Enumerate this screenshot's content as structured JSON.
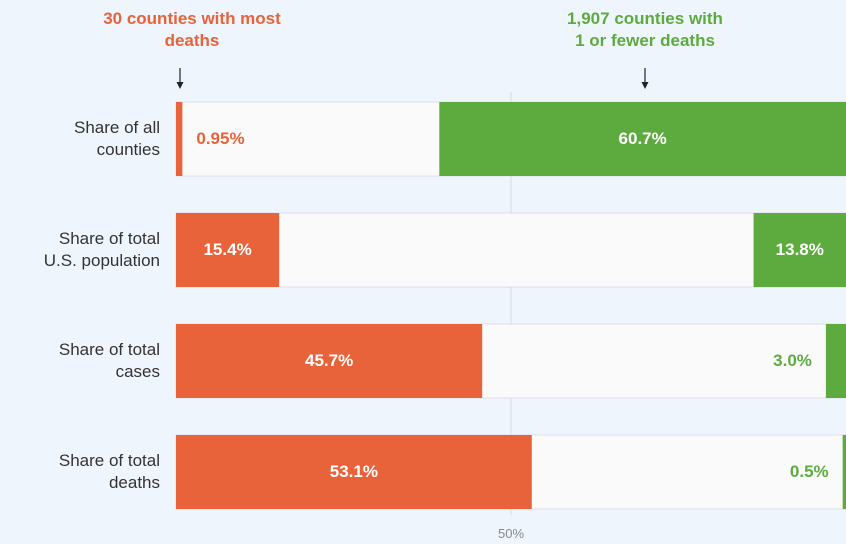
{
  "chart_data": {
    "type": "bar",
    "categories": [
      "Share of all\ncounties",
      "Share of total\nU.S. population",
      "Share of total\ncases",
      "Share of total\ndeaths"
    ],
    "series": [
      {
        "name": "30 counties with most\ndeaths",
        "color": "#e8623a",
        "values": [
          0.95,
          15.4,
          45.7,
          53.1
        ],
        "value_labels": [
          "0.95%",
          "15.4%",
          "45.7%",
          "53.1%"
        ]
      },
      {
        "name": "1,907 counties with\n1 or fewer deaths",
        "color": "#5dab3f",
        "values": [
          60.7,
          13.8,
          3.0,
          0.5
        ],
        "value_labels": [
          "60.7%",
          "13.8%",
          "3.0%",
          "0.5%"
        ]
      }
    ],
    "xlim": [
      0,
      100
    ],
    "xticks": [
      {
        "value": 50,
        "label": "50%"
      }
    ],
    "grid": true
  }
}
